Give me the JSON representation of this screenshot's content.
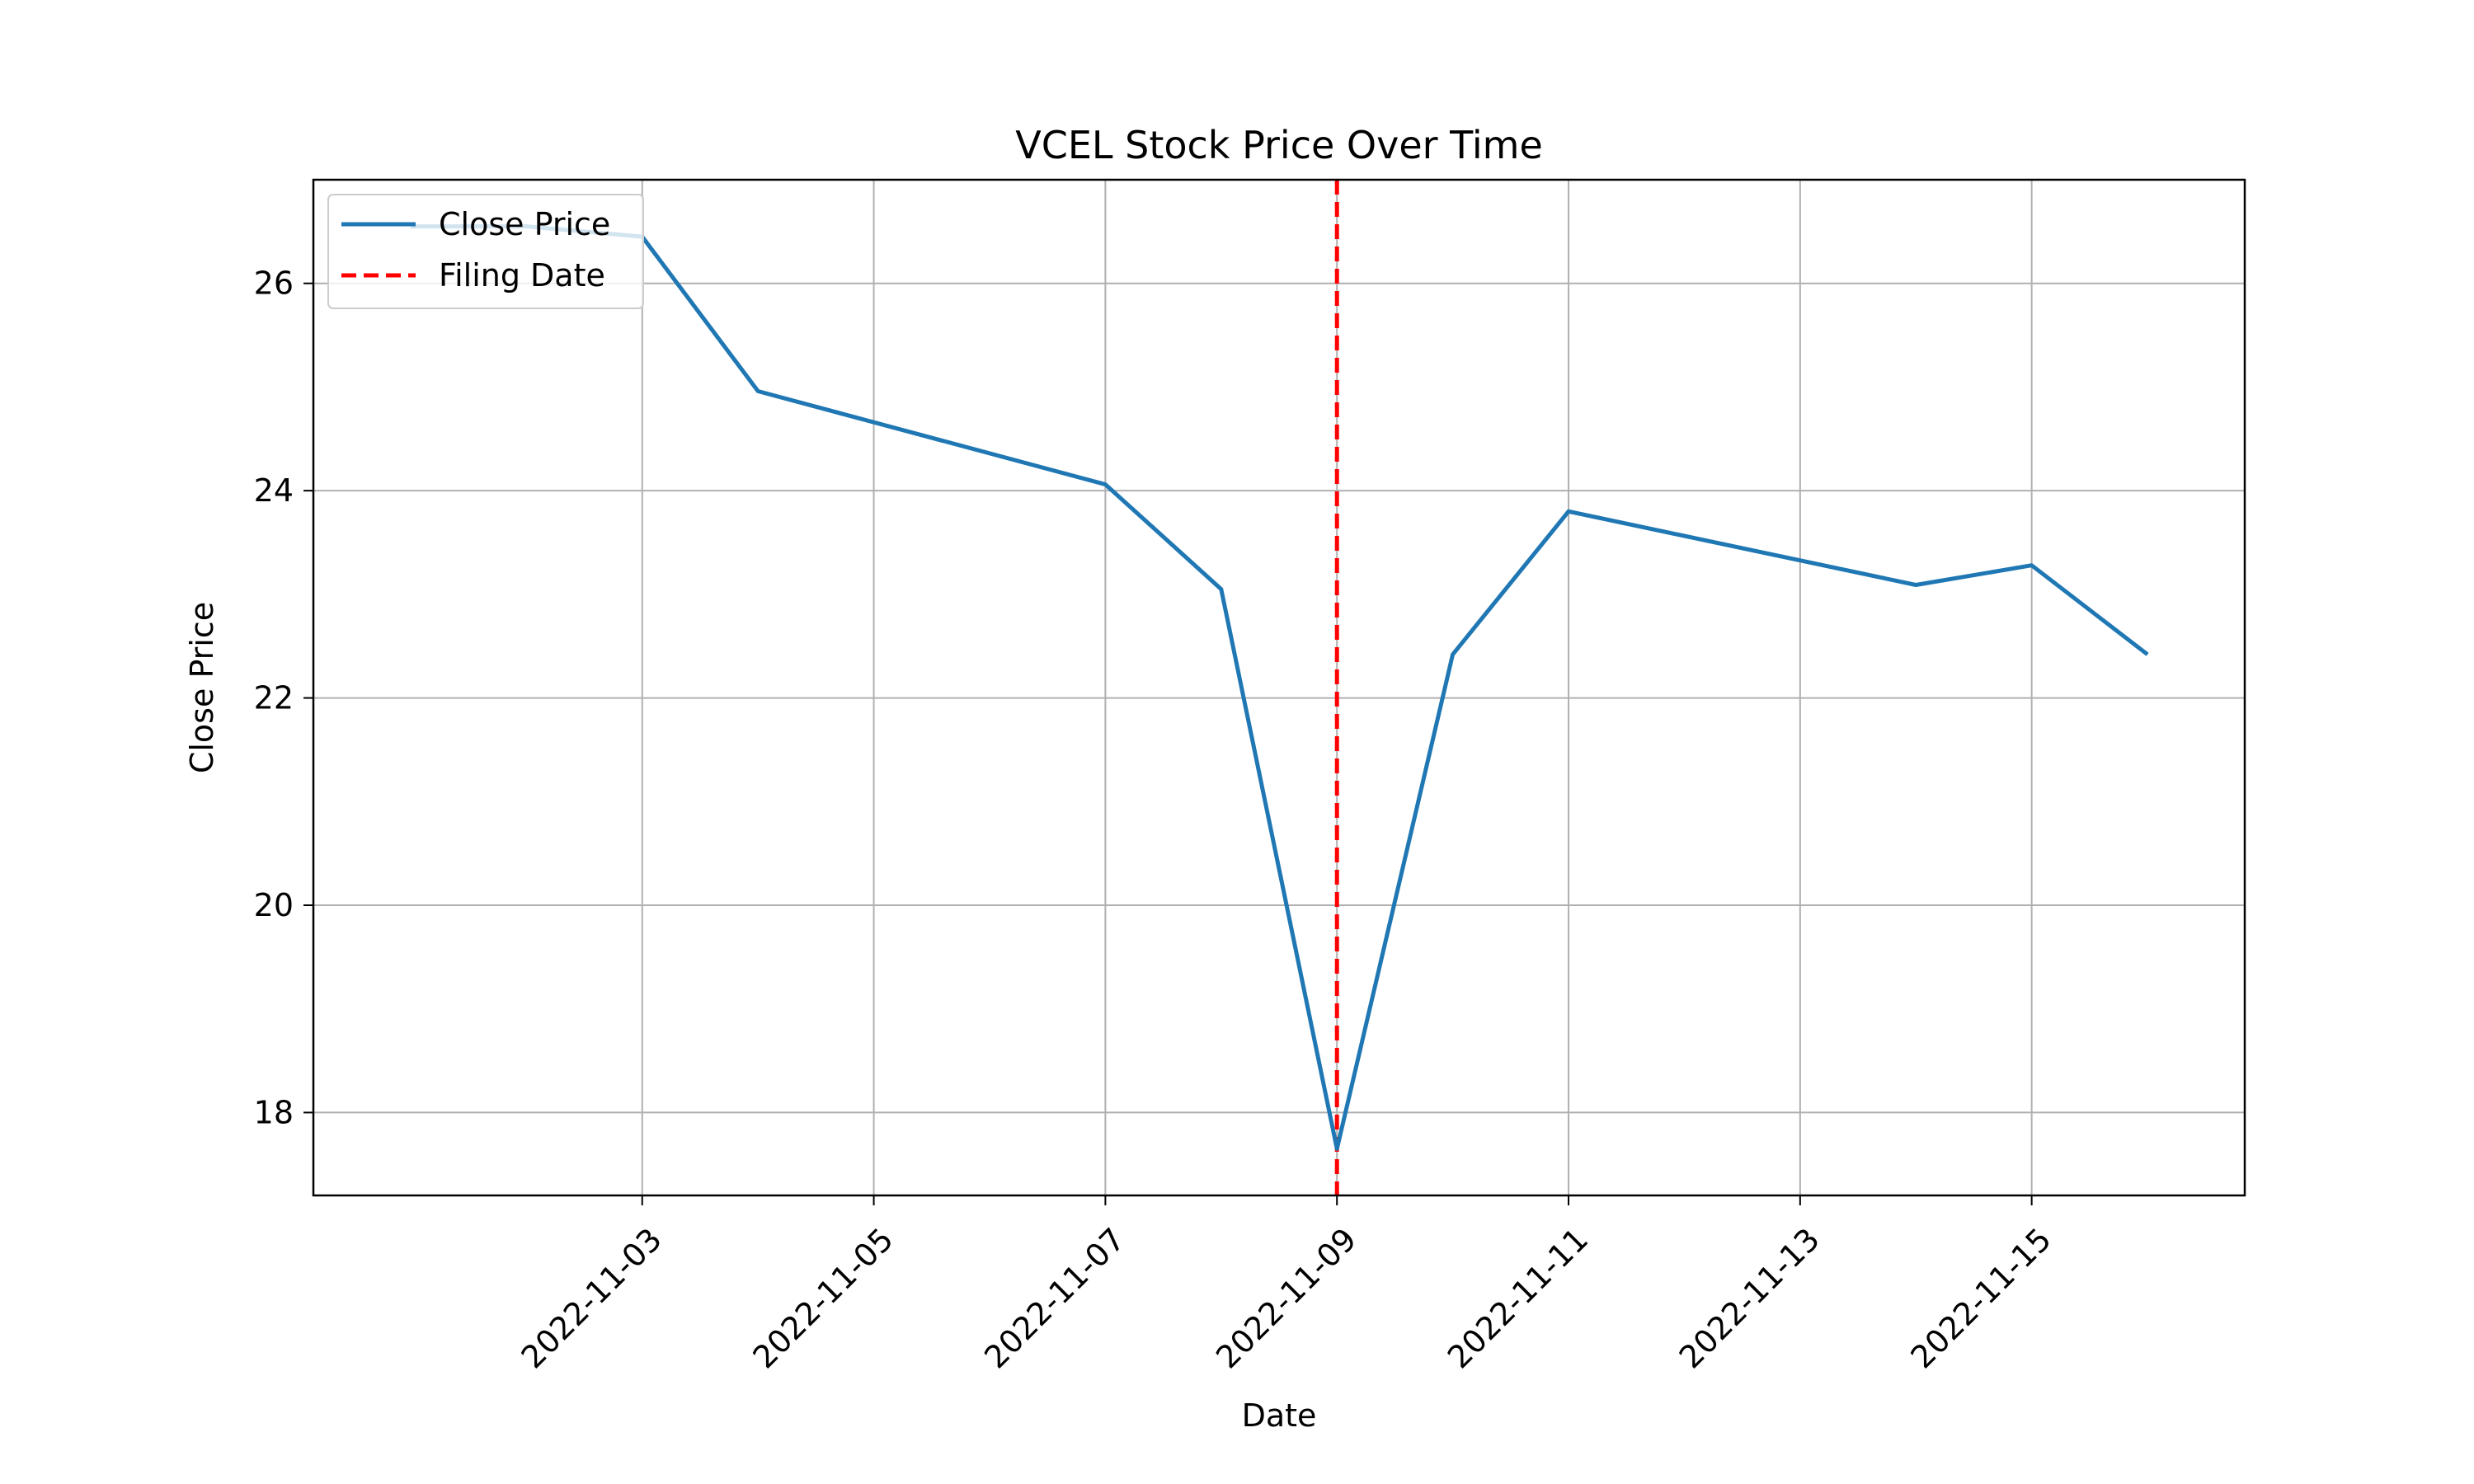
{
  "chart_data": {
    "type": "line",
    "title": "VCEL Stock Price Over Time",
    "xlabel": "Date",
    "ylabel": "Close Price",
    "x_ticks": [
      "2022-11-03",
      "2022-11-05",
      "2022-11-07",
      "2022-11-09",
      "2022-11-11",
      "2022-11-13",
      "2022-11-15"
    ],
    "y_ticks": [
      18,
      20,
      22,
      24,
      26
    ],
    "xlim": [
      "2022-11-01",
      "2022-11-16"
    ],
    "ylim": [
      17.2,
      27.0
    ],
    "grid": true,
    "legend_position": "top-left",
    "series": [
      {
        "name": "Close Price",
        "color": "#1f77b4",
        "points": [
          {
            "x": "2022-11-01",
            "y": 26.55
          },
          {
            "x": "2022-11-02",
            "y": 26.55
          },
          {
            "x": "2022-11-03",
            "y": 26.45
          },
          {
            "x": "2022-11-04",
            "y": 24.96
          },
          {
            "x": "2022-11-07",
            "y": 24.06
          },
          {
            "x": "2022-11-08",
            "y": 23.05
          },
          {
            "x": "2022-11-09",
            "y": 17.65
          },
          {
            "x": "2022-11-10",
            "y": 22.42
          },
          {
            "x": "2022-11-11",
            "y": 23.8
          },
          {
            "x": "2022-11-14",
            "y": 23.09
          },
          {
            "x": "2022-11-15",
            "y": 23.28
          },
          {
            "x": "2022-11-16",
            "y": 22.42
          }
        ]
      }
    ],
    "reference_lines": [
      {
        "name": "Filing Date",
        "x": "2022-11-09",
        "color": "#ff0000",
        "style": "dashed"
      }
    ]
  }
}
